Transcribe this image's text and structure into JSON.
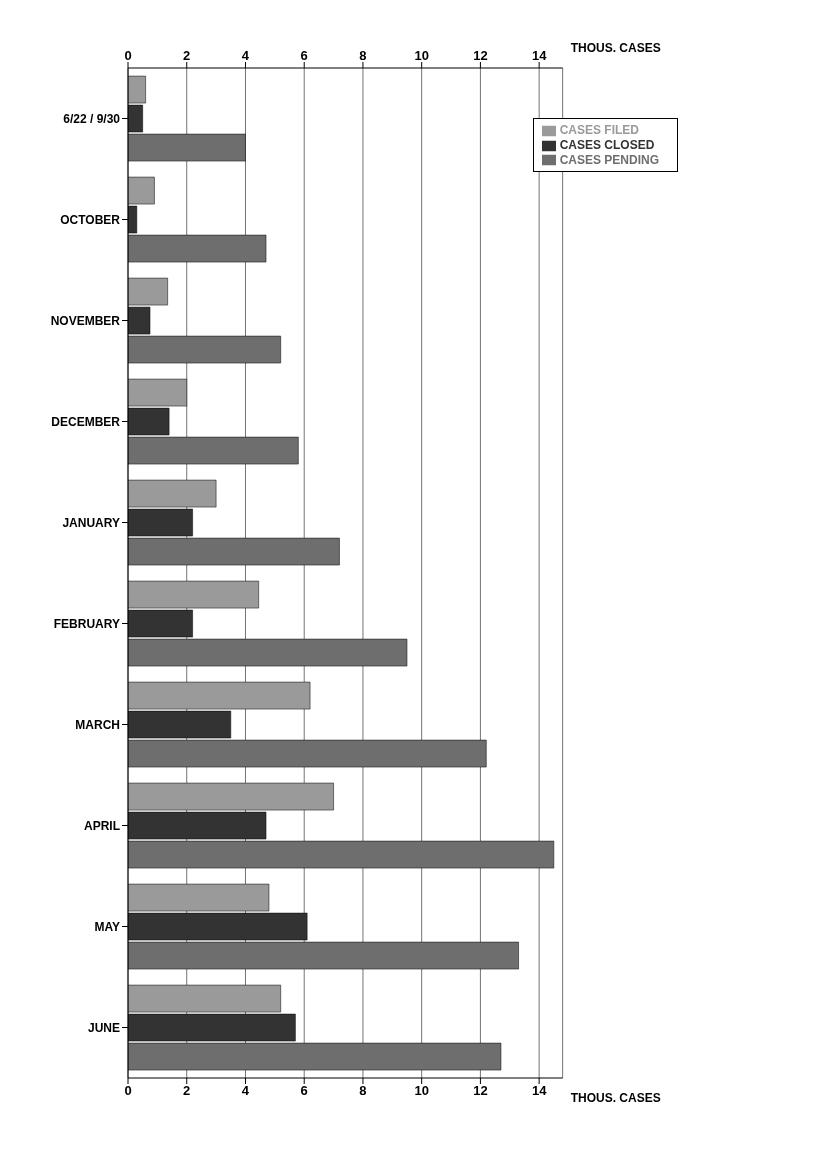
{
  "chart_data": {
    "type": "bar",
    "orientation": "horizontal",
    "categories": [
      "6/22 / 9/30",
      "OCTOBER",
      "NOVEMBER",
      "DECEMBER",
      "JANUARY",
      "FEBRUARY",
      "MARCH",
      "APRIL",
      "MAY",
      "JUNE"
    ],
    "series": [
      {
        "name": "CASES FILED",
        "color": "#9a9a9a",
        "values": [
          0.6,
          0.9,
          1.35,
          2.0,
          3.0,
          4.45,
          6.2,
          7.0,
          4.8,
          5.2
        ]
      },
      {
        "name": "CASES CLOSED",
        "color": "#333333",
        "values": [
          0.5,
          0.3,
          0.75,
          1.4,
          2.2,
          2.2,
          3.5,
          4.7,
          6.1,
          5.7
        ]
      },
      {
        "name": "CASES PENDING",
        "color": "#6e6e6e",
        "values": [
          4.0,
          4.7,
          5.2,
          5.8,
          7.2,
          9.5,
          12.2,
          14.5,
          13.3,
          12.7
        ]
      }
    ],
    "xlabel": "THOUS. CASES",
    "x2label": "THOUS. CASES",
    "xlim": [
      0,
      14.8
    ],
    "xticks": [
      0,
      2,
      4,
      6,
      8,
      10,
      12,
      14
    ],
    "x2lim": [
      0,
      14.8
    ],
    "x2ticks": [
      0,
      2,
      4,
      6,
      8,
      10,
      12,
      14
    ],
    "grid": true,
    "legend": "top right"
  }
}
